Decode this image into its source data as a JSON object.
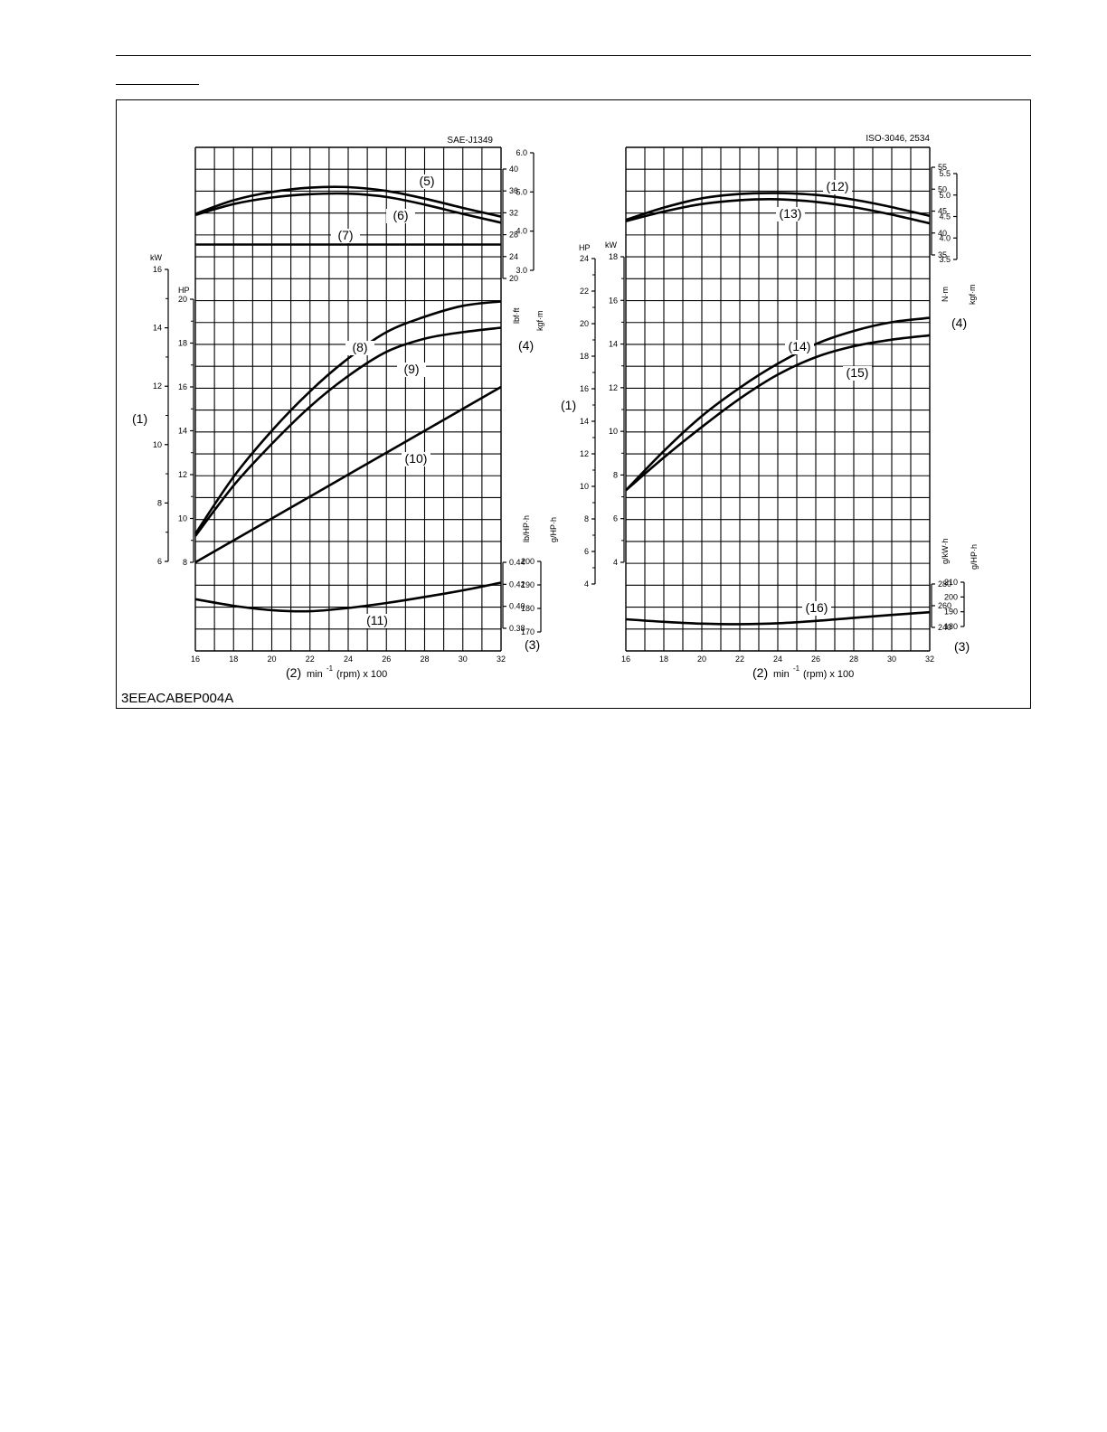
{
  "figure_code": "3EEACABEP004A",
  "chart_data": [
    {
      "type": "line",
      "title": "SAE-J1349",
      "xlabel_num": "(2)",
      "xlabel_text": "min",
      "xlabel_sup": "-1",
      "xlabel_tail": "(rpm) x 100",
      "x_ticks": [
        "16",
        "18",
        "20",
        "22",
        "24",
        "26",
        "28",
        "30",
        "32"
      ],
      "xlim": [
        16,
        32
      ],
      "axis_labels": {
        "power_unit_kw": "kW",
        "power_unit_hp": "HP",
        "power_callout": "(1)",
        "torque_unit_lbft": "lbf·ft",
        "torque_unit_kgfm": "kgf·m",
        "torque_callout": "(4)",
        "fuel_unit_lb": "lb/HP·h",
        "fuel_unit_g": "g/HP·h",
        "fuel_callout": "(3)"
      },
      "axes": {
        "kw": {
          "range": [
            6,
            16
          ],
          "ticks": [
            "6",
            "8",
            "10",
            "12",
            "14",
            "16"
          ]
        },
        "hp": {
          "range": [
            8,
            20
          ],
          "ticks": [
            "8",
            "10",
            "12",
            "14",
            "16",
            "18",
            "20"
          ]
        },
        "lbft": {
          "range": [
            20,
            40
          ],
          "ticks": [
            "20",
            "24",
            "28",
            "32",
            "36",
            "40"
          ]
        },
        "kgfm": {
          "range": [
            3.0,
            6.0
          ],
          "ticks": [
            "3.0",
            "4.0",
            "5.0",
            "6.0"
          ]
        },
        "lbhp": {
          "range": [
            0.38,
            0.44
          ],
          "ticks": [
            "0.38",
            "0.40",
            "0.42",
            "0.44"
          ]
        },
        "ghp": {
          "range": [
            170,
            200
          ],
          "ticks": [
            "170",
            "180",
            "190",
            "200"
          ]
        }
      },
      "series": [
        {
          "name": "(5)",
          "axis": "lbft",
          "x": [
            16,
            18,
            20,
            22,
            24,
            26,
            28,
            30,
            32
          ],
          "values": [
            31.8,
            34.3,
            35.8,
            36.6,
            36.7,
            36.0,
            34.6,
            32.9,
            31.3
          ]
        },
        {
          "name": "(6)",
          "axis": "lbft",
          "x": [
            16,
            18,
            20,
            22,
            24,
            26,
            28,
            30,
            32
          ],
          "values": [
            31.6,
            33.6,
            34.8,
            35.4,
            35.5,
            34.9,
            33.5,
            31.8,
            30.2
          ]
        },
        {
          "name": "(7)",
          "axis": "lbft",
          "x": [
            16,
            32
          ],
          "values": [
            26.2,
            26.2
          ]
        },
        {
          "name": "(8)",
          "axis": "hp",
          "x": [
            16,
            18,
            20,
            22,
            24,
            26,
            28,
            30,
            32
          ],
          "values": [
            9.3,
            11.9,
            14.0,
            15.8,
            17.3,
            18.5,
            19.2,
            19.7,
            19.9
          ]
        },
        {
          "name": "(9)",
          "axis": "hp",
          "x": [
            16,
            18,
            20,
            22,
            24,
            26,
            28,
            30,
            32
          ],
          "values": [
            9.2,
            11.5,
            13.4,
            15.1,
            16.5,
            17.6,
            18.2,
            18.5,
            18.7
          ]
        },
        {
          "name": "(10)",
          "axis": "hp",
          "x": [
            16,
            32
          ],
          "values": [
            8.0,
            16.0
          ]
        },
        {
          "name": "(11)",
          "axis": "lbhp",
          "x": [
            16,
            18,
            20,
            22,
            24,
            26,
            28,
            30,
            32
          ],
          "values": [
            0.4065,
            0.4005,
            0.3965,
            0.3955,
            0.3985,
            0.403,
            0.4085,
            0.4145,
            0.4215
          ]
        }
      ],
      "labels": [
        "(5)",
        "(6)",
        "(7)",
        "(8)",
        "(9)",
        "(10)",
        "(11)"
      ]
    },
    {
      "type": "line",
      "title": "ISO-3046, 2534",
      "xlabel_num": "(2)",
      "xlabel_text": "min",
      "xlabel_sup": "-1",
      "xlabel_tail": "(rpm) x 100",
      "x_ticks": [
        "16",
        "18",
        "20",
        "22",
        "24",
        "26",
        "28",
        "30",
        "32"
      ],
      "xlim": [
        16,
        32
      ],
      "axis_labels": {
        "power_unit_kw": "kW",
        "power_unit_hp": "HP",
        "power_callout": "(1)",
        "torque_unit_nm": "N·m",
        "torque_unit_kgfm": "kgf·m",
        "torque_callout": "(4)",
        "fuel_unit_gkwh": "g/kW·h",
        "fuel_unit_ghp": "g/HP·h",
        "fuel_callout": "(3)"
      },
      "axes": {
        "kw": {
          "range": [
            4,
            18
          ],
          "ticks": [
            "4",
            "6",
            "8",
            "10",
            "12",
            "14",
            "16",
            "18"
          ]
        },
        "hp": {
          "range": [
            4,
            24
          ],
          "ticks": [
            "4",
            "6",
            "8",
            "10",
            "12",
            "14",
            "16",
            "18",
            "20",
            "22",
            "24"
          ]
        },
        "nm": {
          "range": [
            35,
            55
          ],
          "ticks": [
            "35",
            "40",
            "45",
            "50",
            "55"
          ]
        },
        "kgfm": {
          "range": [
            3.5,
            5.5
          ],
          "ticks": [
            "3.5",
            "4.0",
            "4.5",
            "5.0",
            "5.5"
          ]
        },
        "gkwh": {
          "range": [
            240,
            280
          ],
          "ticks": [
            "240",
            "260",
            "280"
          ]
        },
        "ghp": {
          "range": [
            180,
            210
          ],
          "ticks": [
            "180",
            "190",
            "200",
            "210"
          ]
        }
      },
      "series": [
        {
          "name": "(12)",
          "axis": "nm",
          "x": [
            16,
            18,
            20,
            22,
            24,
            26,
            28,
            30,
            32
          ],
          "values": [
            43.0,
            45.8,
            47.9,
            48.9,
            49.1,
            48.7,
            47.6,
            45.9,
            43.9
          ]
        },
        {
          "name": "(13)",
          "axis": "nm",
          "x": [
            16,
            18,
            20,
            22,
            24,
            26,
            28,
            30,
            32
          ],
          "values": [
            42.7,
            44.9,
            46.6,
            47.5,
            47.7,
            47.1,
            45.9,
            44.2,
            42.2
          ]
        },
        {
          "name": "(14)",
          "axis": "kw",
          "x": [
            16,
            18,
            20,
            22,
            24,
            26,
            28,
            30,
            32
          ],
          "values": [
            7.3,
            9.1,
            10.7,
            12.0,
            13.1,
            14.0,
            14.6,
            15.0,
            15.2
          ]
        },
        {
          "name": "(15)",
          "axis": "kw",
          "x": [
            16,
            18,
            20,
            22,
            24,
            26,
            28,
            30,
            32
          ],
          "values": [
            7.3,
            8.8,
            10.2,
            11.5,
            12.6,
            13.4,
            13.9,
            14.2,
            14.4
          ]
        },
        {
          "name": "(16)",
          "axis": "gkwh",
          "x": [
            16,
            18,
            20,
            22,
            24,
            26,
            28,
            30,
            32
          ],
          "values": [
            247.5,
            245.2,
            243.5,
            243.0,
            243.8,
            246.0,
            248.8,
            251.5,
            254.0
          ]
        }
      ],
      "labels": [
        "(12)",
        "(13)",
        "(14)",
        "(15)",
        "(16)"
      ]
    }
  ]
}
